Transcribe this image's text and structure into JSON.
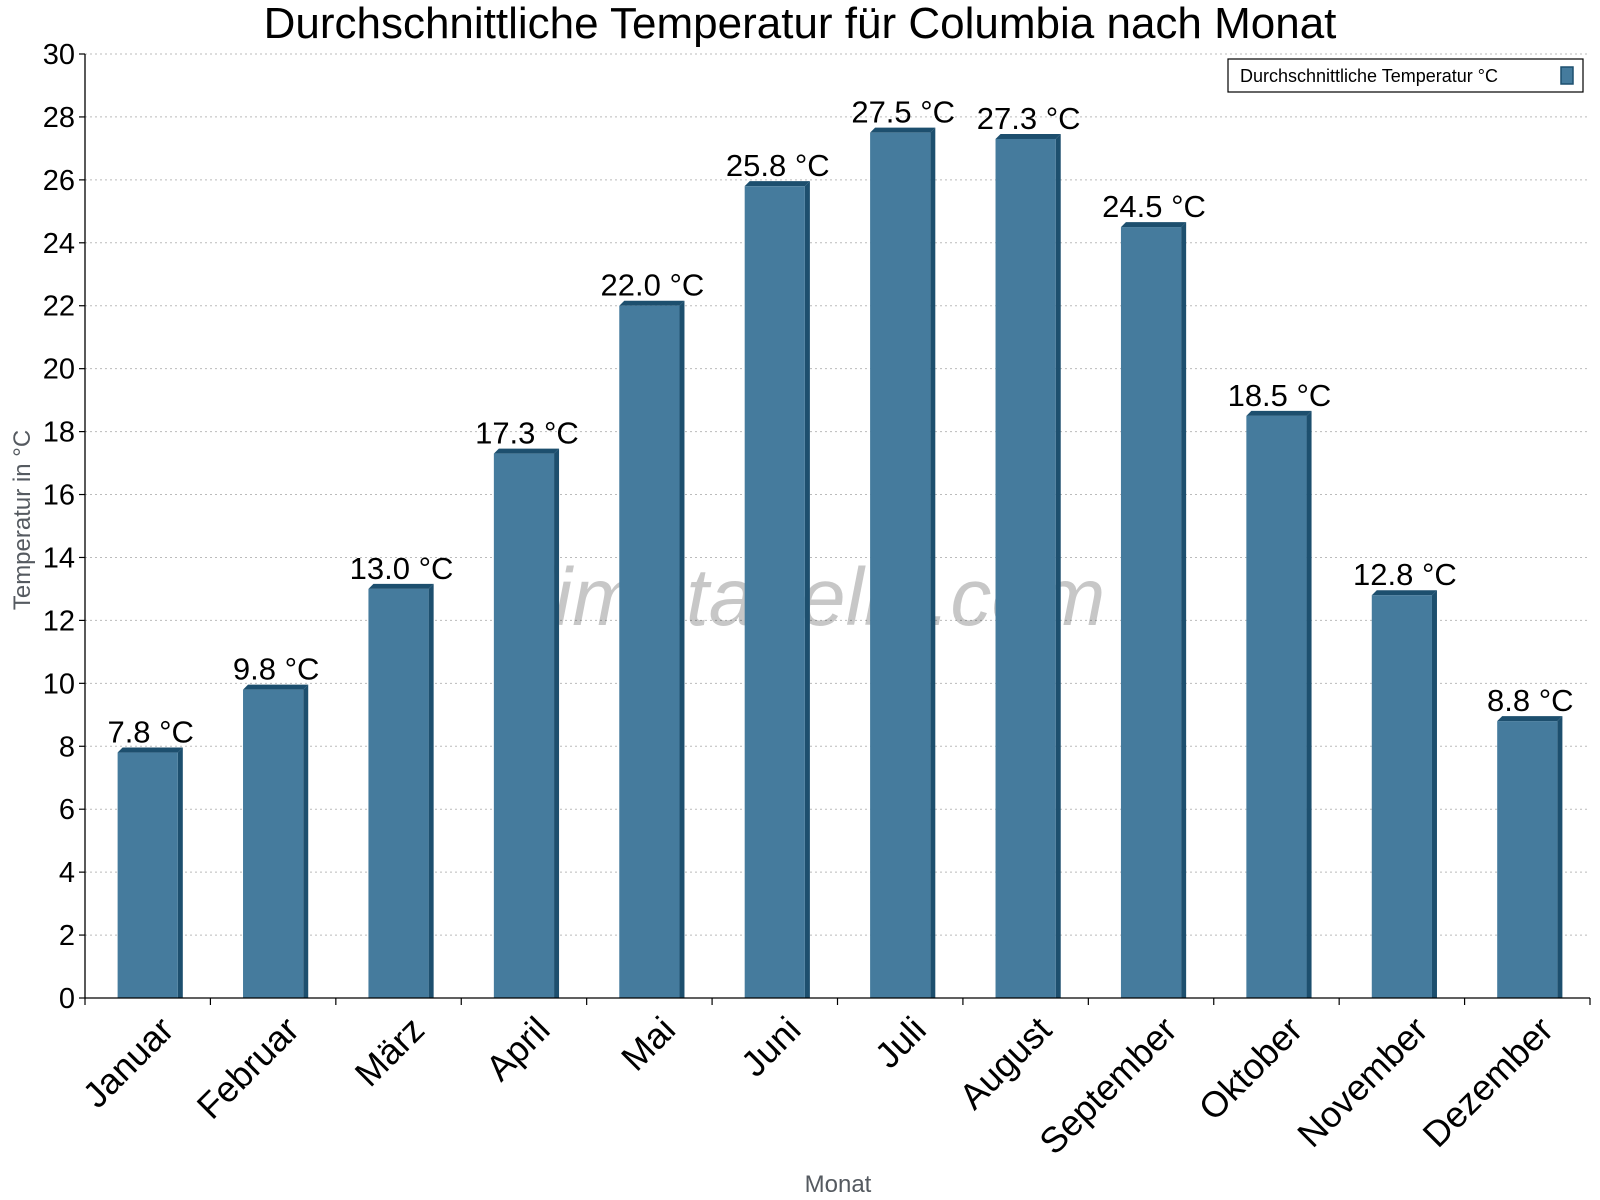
{
  "chart_data": {
    "type": "bar",
    "title": "Durchschnittliche Temperatur für Columbia nach Monat",
    "xlabel": "Monat",
    "ylabel": "Temperatur in °C",
    "ylim": [
      0,
      30
    ],
    "yticks": [
      0,
      2,
      4,
      6,
      8,
      10,
      12,
      14,
      16,
      18,
      20,
      22,
      24,
      26,
      28,
      30
    ],
    "categories": [
      "Januar",
      "Februar",
      "März",
      "April",
      "Mai",
      "Juni",
      "Juli",
      "August",
      "September",
      "Oktober",
      "November",
      "Dezember"
    ],
    "series": [
      {
        "name": "Durchschnittliche Temperatur °C",
        "values": [
          7.8,
          9.8,
          13.0,
          17.3,
          22.0,
          25.8,
          27.5,
          27.3,
          24.5,
          18.5,
          12.8,
          8.8
        ],
        "data_labels": [
          "7.8 °C",
          "9.8 °C",
          "13.0 °C",
          "17.3 °C",
          "22.0 °C",
          "25.8 °C",
          "27.5 °C",
          "27.3 °C",
          "24.5 °C",
          "18.5 °C",
          "12.8 °C",
          "8.8 °C"
        ]
      }
    ],
    "grid": true,
    "legend_position": "top-right",
    "watermark": "klimatabelle.com",
    "colors": {
      "bar_front": "#457b9d",
      "bar_side": "#1d4f6e",
      "grid": "#bbbbbb"
    }
  }
}
